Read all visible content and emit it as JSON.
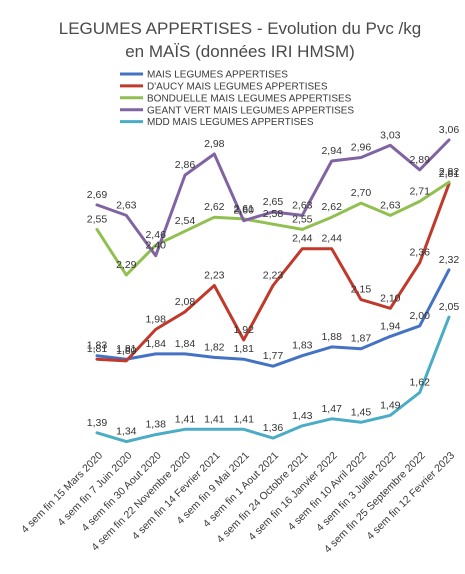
{
  "chart_data": {
    "type": "line",
    "title": "LEGUMES APPERTISES - Evolution du Pvc /kg",
    "subtitle": "en MAÏS (données IRI HMSM)",
    "xlabel": "",
    "ylabel": "",
    "grid": false,
    "legend_position": "top",
    "categories": [
      "4 sem fin 15 Mars 2020",
      "4 sem fin 7 Juin 2020",
      "4 sem fin 30 Aout 2020",
      "4 sem fin 22 Novembre 2020",
      "4 sem fin 14 Fevrier 2021",
      "4 sem fin 9 Mai 2021",
      "4 sem fin 1 Aout 2021",
      "4 sem fin 24 Octobre 2021",
      "4 sem fin 16 Janvier 2022",
      "4 sem fin 10 Avril 2022",
      "4 sem fin 3 Juillet 2022",
      "4 sem fin 25 Septembre 2022",
      "4 sem fin 12 Fevrier 2023"
    ],
    "series": [
      {
        "name": "MAIS LEGUMES APPERTISES",
        "color": "#4472c4",
        "values": [
          1.83,
          1.81,
          1.84,
          1.84,
          1.82,
          1.81,
          1.77,
          1.83,
          1.88,
          1.87,
          1.94,
          2.0,
          2.32
        ],
        "labels": [
          "1,83",
          "1,81",
          "1,84",
          "1,84",
          "1,82",
          "1,81",
          "1,77",
          "1,83",
          "1,88",
          "1,87",
          "1,94",
          "2,00",
          "2,32"
        ]
      },
      {
        "name": "D'AUCY MAIS LEGUMES APPERTISES",
        "color": "#c0392b",
        "values": [
          1.81,
          1.8,
          1.98,
          2.08,
          2.23,
          1.92,
          2.23,
          2.44,
          2.44,
          2.15,
          2.1,
          2.36,
          2.81
        ],
        "labels": [
          "1,81",
          "1,80",
          "1,98",
          "2,08",
          "2,23",
          "1,92",
          "2,23",
          "2,44",
          "2,44",
          "2,15",
          "2,10",
          "2,36",
          "2,81"
        ]
      },
      {
        "name": "BONDUELLE MAIS LEGUMES APPERTISES",
        "color": "#92c050",
        "values": [
          2.55,
          2.29,
          2.46,
          2.54,
          2.62,
          2.61,
          2.58,
          2.55,
          2.62,
          2.7,
          2.63,
          2.71,
          2.82
        ],
        "labels": [
          "2,55",
          "2,29",
          "2,46",
          "2,54",
          "2,62",
          "2,61",
          "2,58",
          "2,55",
          "2,62",
          "2,70",
          "2,63",
          "2,71",
          "2,82"
        ]
      },
      {
        "name": "GEANT VERT MAIS LEGUMES APPERTISES",
        "color": "#8064a2",
        "values": [
          2.69,
          2.63,
          2.4,
          2.86,
          2.98,
          2.6,
          2.65,
          2.63,
          2.94,
          2.96,
          3.03,
          2.89,
          3.06
        ],
        "labels": [
          "2,69",
          "2,63",
          "2,40",
          "2,86",
          "2,98",
          "2,60",
          "2,65",
          "2,63",
          "2,94",
          "2,96",
          "3,03",
          "2,89",
          "3,06"
        ]
      },
      {
        "name": "MDD MAIS LEGUMES APPERTISES",
        "color": "#4bacc6",
        "values": [
          1.39,
          1.34,
          1.38,
          1.41,
          1.41,
          1.41,
          1.36,
          1.43,
          1.47,
          1.45,
          1.49,
          1.62,
          2.05
        ],
        "labels": [
          "1,39",
          "1,34",
          "1,38",
          "1,41",
          "1,41",
          "1,41",
          "1,36",
          "1,43",
          "1,47",
          "1,45",
          "1,49",
          "1,62",
          "2,05"
        ]
      }
    ]
  }
}
